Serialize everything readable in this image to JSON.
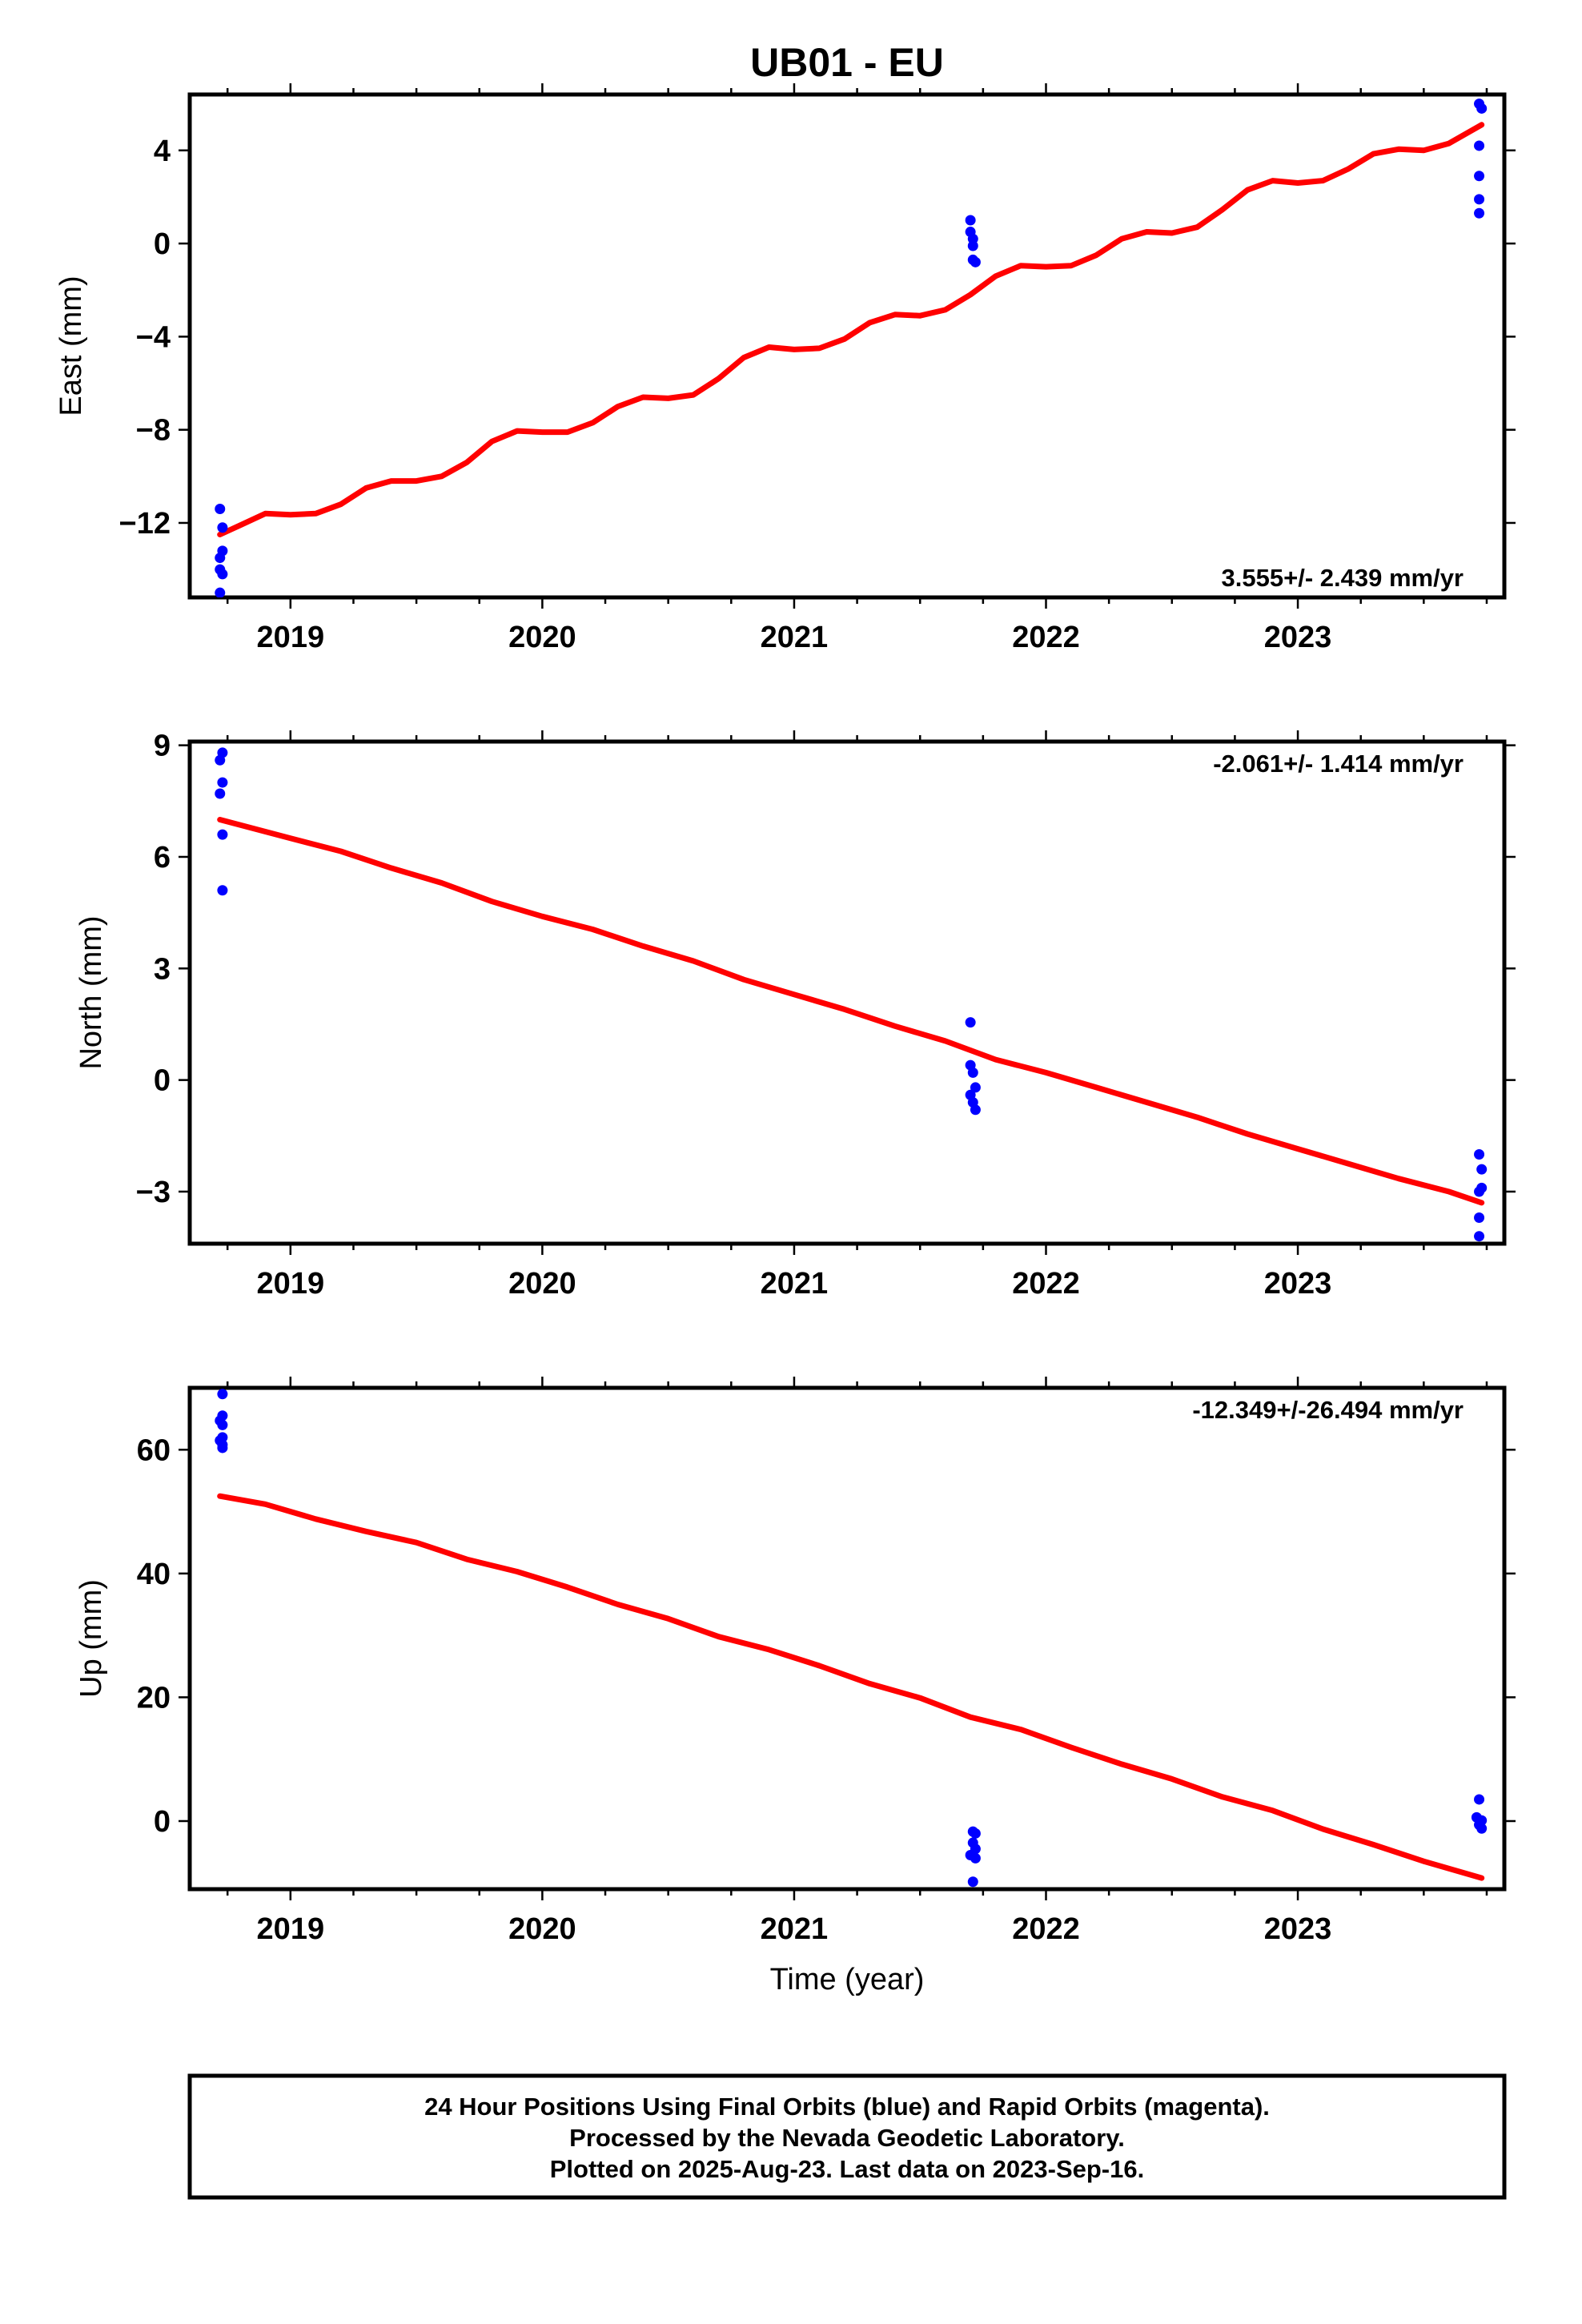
{
  "title": "UB01 - EU",
  "xlabel": "Time (year)",
  "footer": {
    "line1": "24 Hour Positions Using Final Orbits (blue) and Rapid Orbits (magenta).",
    "line2": "Processed by the Nevada Geodetic Laboratory.",
    "line3": "Plotted on 2025-Aug-23. Last data on 2023-Sep-16."
  },
  "colors": {
    "final_orbits": "#0000ff",
    "model_fit": "#ff0000",
    "axes": "#000000"
  },
  "chart_data": [
    {
      "type": "scatter",
      "ylabel": "East (mm)",
      "rate_label": "3.555+/- 2.439 mm/yr",
      "rate_position": "bottom-right",
      "xlim": [
        2018.6,
        2023.82
      ],
      "ylim": [
        -15.2,
        6.4
      ],
      "yticks": [
        4,
        0,
        -4,
        -8,
        -12
      ],
      "xticks": [
        2019,
        2020,
        2021,
        2022,
        2023
      ],
      "grid": false,
      "series": [
        {
          "name": "Final Orbits",
          "points": [
            [
              2018.72,
              -11.4
            ],
            [
              2018.73,
              -12.2
            ],
            [
              2018.73,
              -13.2
            ],
            [
              2018.72,
              -13.5
            ],
            [
              2018.72,
              -14.0
            ],
            [
              2018.73,
              -14.2
            ],
            [
              2018.72,
              -15.0
            ],
            [
              2021.7,
              1.0
            ],
            [
              2021.7,
              0.5
            ],
            [
              2021.71,
              0.2
            ],
            [
              2021.71,
              -0.1
            ],
            [
              2021.71,
              -0.7
            ],
            [
              2021.72,
              -0.8
            ],
            [
              2023.72,
              6.0
            ],
            [
              2023.73,
              5.8
            ],
            [
              2023.72,
              4.2
            ],
            [
              2023.72,
              2.9
            ],
            [
              2023.72,
              1.9
            ],
            [
              2023.72,
              1.3
            ]
          ]
        },
        {
          "name": "Model fit",
          "line": [
            [
              2018.72,
              -12.5
            ],
            [
              2018.8,
              -12.1
            ],
            [
              2018.9,
              -11.6
            ],
            [
              2019,
              -11.65
            ],
            [
              2019.1,
              -11.6
            ],
            [
              2019.2,
              -11.2
            ],
            [
              2019.3,
              -10.5
            ],
            [
              2019.4,
              -10.2
            ],
            [
              2019.5,
              -10.2
            ],
            [
              2019.6,
              -10.0
            ],
            [
              2019.7,
              -9.4
            ],
            [
              2019.8,
              -8.5
            ],
            [
              2019.9,
              -8.05
            ],
            [
              2020,
              -8.1
            ],
            [
              2020.1,
              -8.1
            ],
            [
              2020.2,
              -7.7
            ],
            [
              2020.3,
              -7.0
            ],
            [
              2020.4,
              -6.6
            ],
            [
              2020.5,
              -6.65
            ],
            [
              2020.6,
              -6.5
            ],
            [
              2020.7,
              -5.8
            ],
            [
              2020.8,
              -4.9
            ],
            [
              2020.9,
              -4.45
            ],
            [
              2021,
              -4.55
            ],
            [
              2021.1,
              -4.5
            ],
            [
              2021.2,
              -4.1
            ],
            [
              2021.3,
              -3.4
            ],
            [
              2021.4,
              -3.05
            ],
            [
              2021.5,
              -3.1
            ],
            [
              2021.6,
              -2.85
            ],
            [
              2021.7,
              -2.2
            ],
            [
              2021.8,
              -1.4
            ],
            [
              2021.9,
              -0.95
            ],
            [
              2022,
              -1.0
            ],
            [
              2022.1,
              -0.95
            ],
            [
              2022.2,
              -0.5
            ],
            [
              2022.3,
              0.2
            ],
            [
              2022.4,
              0.5
            ],
            [
              2022.5,
              0.45
            ],
            [
              2022.6,
              0.7
            ],
            [
              2022.7,
              1.45
            ],
            [
              2022.8,
              2.3
            ],
            [
              2022.9,
              2.7
            ],
            [
              2023,
              2.6
            ],
            [
              2023.1,
              2.7
            ],
            [
              2023.2,
              3.2
            ],
            [
              2023.3,
              3.85
            ],
            [
              2023.4,
              4.05
            ],
            [
              2023.5,
              4.0
            ],
            [
              2023.6,
              4.3
            ],
            [
              2023.73,
              5.1
            ]
          ]
        }
      ]
    },
    {
      "type": "scatter",
      "ylabel": "North (mm)",
      "rate_label": "-2.061+/- 1.414 mm/yr",
      "rate_position": "top-right",
      "xlim": [
        2018.6,
        2023.82
      ],
      "ylim": [
        -4.4,
        9.1
      ],
      "yticks": [
        9,
        6,
        3,
        0,
        -3
      ],
      "xticks": [
        2019,
        2020,
        2021,
        2022,
        2023
      ],
      "grid": false,
      "series": [
        {
          "name": "Final Orbits",
          "points": [
            [
              2018.73,
              8.8
            ],
            [
              2018.72,
              8.6
            ],
            [
              2018.73,
              8.0
            ],
            [
              2018.72,
              7.7
            ],
            [
              2018.73,
              6.6
            ],
            [
              2018.73,
              5.1
            ],
            [
              2021.7,
              1.55
            ],
            [
              2021.7,
              0.4
            ],
            [
              2021.71,
              0.2
            ],
            [
              2021.72,
              -0.2
            ],
            [
              2021.7,
              -0.4
            ],
            [
              2021.71,
              -0.6
            ],
            [
              2021.72,
              -0.8
            ],
            [
              2023.72,
              -2.0
            ],
            [
              2023.73,
              -2.4
            ],
            [
              2023.73,
              -2.9
            ],
            [
              2023.72,
              -3.0
            ],
            [
              2023.72,
              -3.7
            ],
            [
              2023.72,
              -4.2
            ]
          ]
        },
        {
          "name": "Model fit",
          "line": [
            [
              2018.72,
              7.0
            ],
            [
              2019,
              6.5
            ],
            [
              2019.2,
              6.15
            ],
            [
              2019.4,
              5.7
            ],
            [
              2019.6,
              5.3
            ],
            [
              2019.8,
              4.8
            ],
            [
              2020,
              4.4
            ],
            [
              2020.2,
              4.05
            ],
            [
              2020.4,
              3.6
            ],
            [
              2020.6,
              3.2
            ],
            [
              2020.8,
              2.7
            ],
            [
              2021,
              2.3
            ],
            [
              2021.2,
              1.9
            ],
            [
              2021.4,
              1.45
            ],
            [
              2021.6,
              1.05
            ],
            [
              2021.8,
              0.55
            ],
            [
              2022,
              0.2
            ],
            [
              2022.2,
              -0.2
            ],
            [
              2022.4,
              -0.6
            ],
            [
              2022.6,
              -1.0
            ],
            [
              2022.8,
              -1.45
            ],
            [
              2023,
              -1.85
            ],
            [
              2023.2,
              -2.25
            ],
            [
              2023.4,
              -2.65
            ],
            [
              2023.6,
              -3.0
            ],
            [
              2023.73,
              -3.3
            ]
          ]
        }
      ]
    },
    {
      "type": "scatter",
      "ylabel": "Up (mm)",
      "rate_label": "-12.349+/-26.494 mm/yr",
      "rate_position": "top-right",
      "xlim": [
        2018.6,
        2023.82
      ],
      "ylim": [
        -11,
        70
      ],
      "yticks": [
        60,
        40,
        20,
        0
      ],
      "xticks": [
        2019,
        2020,
        2021,
        2022,
        2023
      ],
      "grid": false,
      "series": [
        {
          "name": "Final Orbits",
          "points": [
            [
              2018.73,
              69.0
            ],
            [
              2018.73,
              65.5
            ],
            [
              2018.72,
              64.7
            ],
            [
              2018.73,
              64.0
            ],
            [
              2018.73,
              62.0
            ],
            [
              2018.72,
              61.5
            ],
            [
              2018.73,
              60.8
            ],
            [
              2018.73,
              60.3
            ],
            [
              2021.71,
              -1.7
            ],
            [
              2021.72,
              -2.0
            ],
            [
              2021.71,
              -3.5
            ],
            [
              2021.72,
              -4.5
            ],
            [
              2021.7,
              -5.5
            ],
            [
              2021.72,
              -6.0
            ],
            [
              2021.71,
              -9.8
            ],
            [
              2023.72,
              3.5
            ],
            [
              2023.71,
              0.6
            ],
            [
              2023.73,
              0.1
            ],
            [
              2023.72,
              -0.6
            ],
            [
              2023.73,
              -1.2
            ]
          ]
        },
        {
          "name": "Model fit",
          "line": [
            [
              2018.72,
              52.5
            ],
            [
              2018.9,
              51.2
            ],
            [
              2019.1,
              48.8
            ],
            [
              2019.3,
              46.8
            ],
            [
              2019.5,
              45.0
            ],
            [
              2019.7,
              42.3
            ],
            [
              2019.9,
              40.3
            ],
            [
              2020.1,
              37.8
            ],
            [
              2020.3,
              35.0
            ],
            [
              2020.5,
              32.7
            ],
            [
              2020.7,
              29.8
            ],
            [
              2020.9,
              27.7
            ],
            [
              2021.1,
              25.1
            ],
            [
              2021.3,
              22.2
            ],
            [
              2021.5,
              19.9
            ],
            [
              2021.7,
              16.8
            ],
            [
              2021.9,
              14.8
            ],
            [
              2022.1,
              11.9
            ],
            [
              2022.3,
              9.2
            ],
            [
              2022.5,
              6.8
            ],
            [
              2022.7,
              3.9
            ],
            [
              2022.9,
              1.7
            ],
            [
              2023.1,
              -1.3
            ],
            [
              2023.3,
              -3.8
            ],
            [
              2023.5,
              -6.5
            ],
            [
              2023.73,
              -9.2
            ]
          ]
        }
      ]
    }
  ]
}
